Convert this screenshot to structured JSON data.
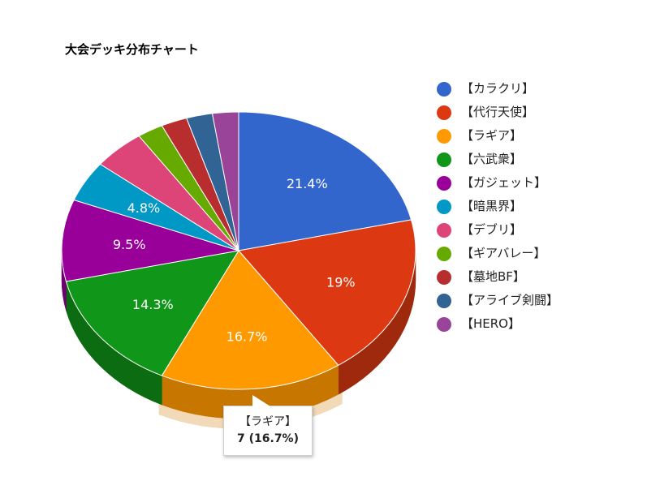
{
  "chart_data": {
    "type": "pie",
    "title": "大会デッキ分布チャート",
    "slices": [
      {
        "label": "【カラクリ】",
        "count": 9,
        "percent_label": "21.4%",
        "color": "#3366cc"
      },
      {
        "label": "【代行天使】",
        "count": 8,
        "percent_label": "19%",
        "color": "#dc3912"
      },
      {
        "label": "【ラギア】",
        "count": 7,
        "percent_label": "16.7%",
        "color": "#ff9900"
      },
      {
        "label": "【六武衆】",
        "count": 6,
        "percent_label": "14.3%",
        "color": "#109618"
      },
      {
        "label": "【ガジェット】",
        "count": 4,
        "percent_label": "9.5%",
        "color": "#990099"
      },
      {
        "label": "【暗黒界】",
        "count": 2,
        "percent_label": "4.8%",
        "color": "#0099c6"
      },
      {
        "label": "【デブリ】",
        "count": 2,
        "percent_label": "",
        "color": "#dd4477"
      },
      {
        "label": "【ギアバレー】",
        "count": 1,
        "percent_label": "",
        "color": "#66aa00"
      },
      {
        "label": "【墓地BF】",
        "count": 1,
        "percent_label": "",
        "color": "#b82e2e"
      },
      {
        "label": "【アライブ剣闘】",
        "count": 1,
        "percent_label": "",
        "color": "#316395"
      },
      {
        "label": "【HERO】",
        "count": 1,
        "percent_label": "",
        "color": "#994499"
      }
    ],
    "legend_position": "right",
    "highlighted_slice": 2
  },
  "tooltip": {
    "name": "【ラギア】",
    "value": "7 (16.7%)"
  }
}
